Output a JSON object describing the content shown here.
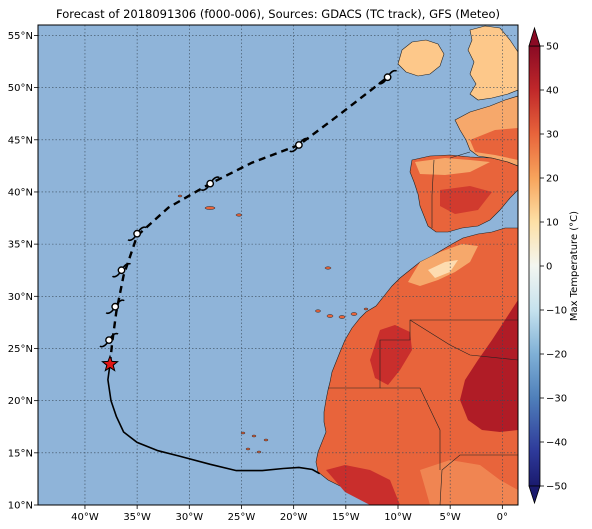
{
  "title": "Forecast of 2018091306 (f000-006), Sources: GDACS (TC track), GFS (Meteo)",
  "colors": {
    "ocean": "#8fb4d9",
    "land_hot": "#e8643b",
    "land_very_hot": "#b01c26",
    "land_warm": "#f6a86b",
    "land_mild": "#fddcb0",
    "grid": "#3a4a5a",
    "track": "#000000",
    "current_position": "#e01515"
  },
  "lat_ticks": [
    "10°N",
    "15°N",
    "20°N",
    "25°N",
    "30°N",
    "35°N",
    "40°N",
    "45°N",
    "50°N",
    "55°N"
  ],
  "lon_ticks": [
    "40°W",
    "35°W",
    "30°W",
    "25°W",
    "20°W",
    "15°W",
    "10°W",
    "5°W",
    "0°"
  ],
  "colorbar": {
    "label": "Max Temperature (°C)",
    "ticks": [
      "50",
      "40",
      "30",
      "20",
      "10",
      "0",
      "−10",
      "−20",
      "−30",
      "−40",
      "−50"
    ],
    "range": [
      -50,
      50
    ]
  },
  "track": {
    "past": [
      [
        -17.5,
        13.0
      ],
      [
        -18.2,
        13.4
      ],
      [
        -19.5,
        13.6
      ],
      [
        -21.0,
        13.5
      ],
      [
        -23.0,
        13.3
      ],
      [
        -25.5,
        13.3
      ],
      [
        -28.0,
        13.9
      ],
      [
        -31.0,
        14.7
      ],
      [
        -33.0,
        15.2
      ],
      [
        -35.0,
        16.0
      ],
      [
        -36.3,
        17.0
      ],
      [
        -37.0,
        18.5
      ],
      [
        -37.5,
        20.0
      ],
      [
        -37.8,
        22.0
      ],
      [
        -37.6,
        23.5
      ]
    ],
    "forecast": [
      [
        -37.6,
        23.5
      ],
      [
        -37.4,
        25.5
      ],
      [
        -37.0,
        28.5
      ],
      [
        -36.3,
        32.0
      ],
      [
        -35.0,
        35.8
      ],
      [
        -32.0,
        38.5
      ],
      [
        -28.0,
        40.8
      ],
      [
        -24.0,
        42.8
      ],
      [
        -19.5,
        44.5
      ],
      [
        -15.5,
        47.5
      ],
      [
        -11.0,
        51.0
      ]
    ],
    "symbols": [
      [
        -37.7,
        25.8
      ],
      [
        -37.1,
        29.0
      ],
      [
        -36.5,
        32.5
      ],
      [
        -35.0,
        36.0
      ],
      [
        -28.0,
        40.8
      ],
      [
        -19.5,
        44.5
      ],
      [
        -11.0,
        51.0
      ]
    ],
    "current_position": [
      -37.6,
      23.5
    ]
  }
}
